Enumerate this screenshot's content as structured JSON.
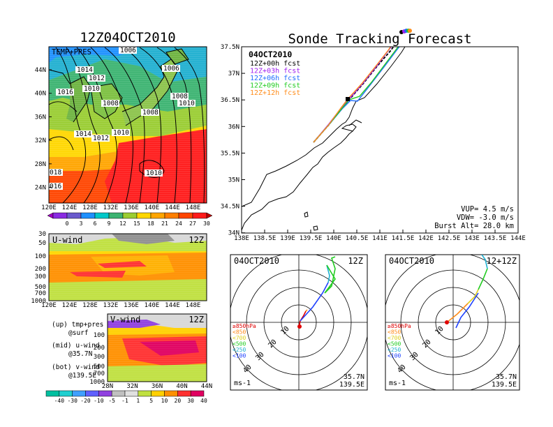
{
  "left": {
    "title": "12Z04OCT2010",
    "map_label": "TEMP+PRES",
    "lat_ticks": [
      "44N",
      "40N",
      "36N",
      "32N",
      "28N",
      "24N"
    ],
    "lon_ticks": [
      "120E",
      "124E",
      "128E",
      "132E",
      "136E",
      "140E",
      "144E",
      "148E"
    ],
    "isobars": [
      "1006",
      "1006",
      "1014",
      "1012",
      "1016",
      "1010",
      "1008",
      "1008",
      "1010",
      "1008",
      "1014",
      "1012",
      "1010",
      "1010",
      "018",
      "016"
    ],
    "temp_colorbar": [
      "0",
      "3",
      "6",
      "9",
      "12",
      "15",
      "18",
      "21",
      "24",
      "27",
      "30"
    ],
    "uwind": {
      "label": "U-wind",
      "time": "12Z",
      "p_ticks": [
        "30",
        "50",
        "100",
        "200",
        "300",
        "500",
        "700",
        "1000"
      ]
    },
    "vwind": {
      "label": "V-wind",
      "time": "12Z",
      "p_ticks": [
        "100",
        "200",
        "300",
        "500",
        "700",
        "1000"
      ],
      "lat_ticks": [
        "28N",
        "32N",
        "36N",
        "40N",
        "44N"
      ]
    },
    "legend": {
      "up": "(up) tmp+pres",
      "up2": "@surf",
      "mid": "(mid) u-wind",
      "mid2": "@35.7N",
      "bot": "(bot) v-wind",
      "bot2": "@139.5E"
    },
    "wind_colorbar": [
      "-40",
      "-30",
      "-20",
      "-10",
      "-5",
      "-1",
      "1",
      "5",
      "10",
      "20",
      "30",
      "40"
    ]
  },
  "track": {
    "title": "Sonde Tracking Forecast",
    "date": "04OCT2010",
    "fcst_labels": [
      "12Z+00h fcst",
      "12Z+03h fcst",
      "12Z+06h fcst",
      "12Z+09h fcst",
      "12Z+12h fcst"
    ],
    "lat_ticks": [
      "37.5N",
      "37N",
      "36.5N",
      "36N",
      "35.5N",
      "35N",
      "34.5N",
      "34N"
    ],
    "lon_ticks": [
      "138E",
      "138.5E",
      "139E",
      "139.5E",
      "140E",
      "140.5E",
      "141E",
      "141.5E",
      "142E",
      "142.5E",
      "143E",
      "143.5E",
      "144E"
    ],
    "vup": "VUP= 4.5 m/s",
    "vdw": "VDW= -3.0 m/s",
    "burst": "Burst Alt= 28.0 km"
  },
  "polar1": {
    "date": "04OCT2010",
    "time": "12Z",
    "rings": [
      "10",
      "20",
      "30",
      "40"
    ],
    "unit": "ms-1",
    "lat": "35.7N",
    "lon": "139.5E"
  },
  "polar2": {
    "date": "04OCT2010",
    "time": "12+12Z",
    "rings": [
      "10",
      "20",
      "30",
      "40"
    ],
    "unit": "ms-1",
    "lat": "35.7N",
    "lon": "139.5E"
  },
  "pressure_legend": [
    "≥850hPa",
    "<850",
    "<700",
    "<500",
    "<250",
    "<100"
  ],
  "colors": {
    "fcst": [
      "#000000",
      "#a020f0",
      "#1e6cff",
      "#22cc22",
      "#ff8c1a"
    ],
    "pressure": [
      "#e00000",
      "#ff8c1a",
      "#e0d020",
      "#22cc22",
      "#20b0d0",
      "#1e40ff"
    ],
    "temp": [
      "#8a2be2",
      "#6a5acd",
      "#1e90ff",
      "#00c8c8",
      "#3cb371",
      "#9acd32",
      "#ffd700",
      "#ffa500",
      "#ff7f00",
      "#ff4500",
      "#ff1a1a"
    ],
    "wind": [
      "#00c0a0",
      "#20d0d0",
      "#40a0ff",
      "#6060ff",
      "#9040e0",
      "#c0c0c0",
      "#e0e0e0",
      "#c0e040",
      "#ffd000",
      "#ff9000",
      "#ff3030",
      "#e00060"
    ]
  }
}
